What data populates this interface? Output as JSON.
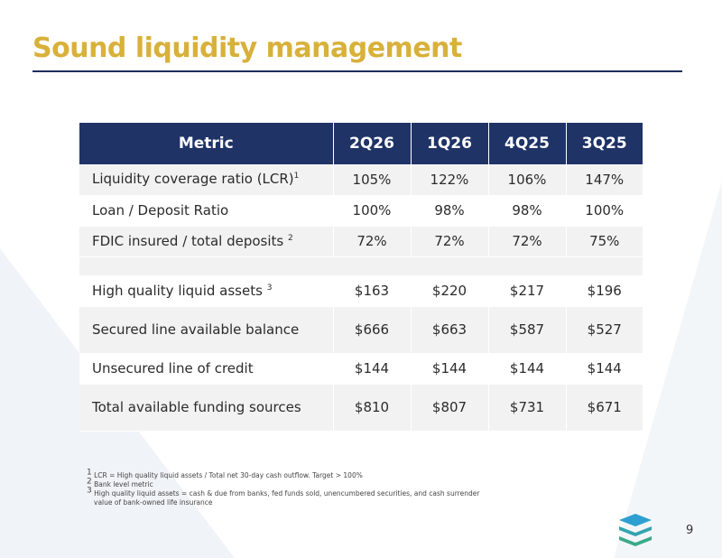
{
  "slide": {
    "title": "Sound liquidity management",
    "page_number": "9"
  },
  "table": {
    "headers": [
      "Metric",
      "2Q26",
      "1Q26",
      "4Q25",
      "3Q25"
    ],
    "rows": [
      {
        "label": "Liquidity coverage ratio (LCR)",
        "sup": "1",
        "values": [
          "105%",
          "122%",
          "106%",
          "147%"
        ]
      },
      {
        "label": "Loan / Deposit Ratio",
        "sup": "",
        "values": [
          "100%",
          "98%",
          "98%",
          "100%"
        ]
      },
      {
        "label": "FDIC insured / total deposits",
        "sup": "2",
        "values": [
          "72%",
          "72%",
          "72%",
          "75%"
        ]
      },
      {
        "label": "High quality liquid assets",
        "sup": "3",
        "values": [
          "$163",
          "$220",
          "$217",
          "$196"
        ]
      },
      {
        "label": "Secured line available balance",
        "sup": "",
        "values": [
          "$666",
          "$663",
          "$587",
          "$527"
        ]
      },
      {
        "label": "Unsecured line of credit",
        "sup": "",
        "values": [
          "$144",
          "$144",
          "$144",
          "$144"
        ]
      },
      {
        "label": "Total available funding sources",
        "sup": "",
        "values": [
          "$810",
          "$807",
          "$731",
          "$671"
        ]
      }
    ]
  },
  "footnotes": {
    "fn1_mark": "1",
    "fn1_text": "LCR = High quality liquid assets / Total net 30-day cash outflow.  Target > 100%",
    "fn2_mark": "2",
    "fn2_text": "Bank level metric",
    "fn3_mark": "3",
    "fn3_text_line1": "High quality liquid assets = cash & due from banks, fed funds sold, unencumbered securities, and cash surrender",
    "fn3_text_line2": "value of bank-owned life insurance"
  },
  "colors": {
    "title": "#d8b13a",
    "header_bg": "#1f3367",
    "logo_top": "#2d9fd0",
    "logo_bottom": "#3aa987"
  },
  "icons": {
    "logo": "stacked-layers-logo"
  }
}
